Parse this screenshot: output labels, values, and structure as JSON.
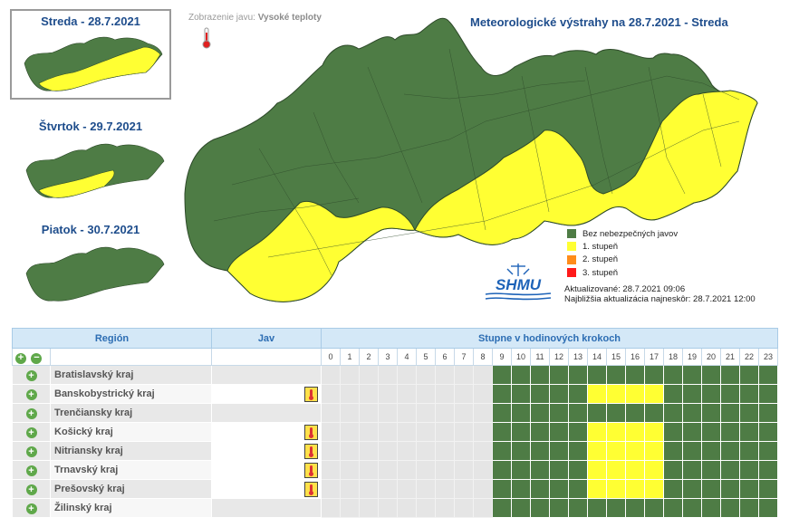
{
  "days": [
    {
      "label": "Streda - 28.7.2021",
      "selected": true
    },
    {
      "label": "Štvrtok - 29.7.2021",
      "selected": false
    },
    {
      "label": "Piatok - 30.7.2021",
      "selected": false
    }
  ],
  "phenomenon": {
    "label": "Zobrazenie javu:",
    "value": "Vysoké teploty",
    "icon": "thermometer-icon"
  },
  "map_title": "Meteorologické výstrahy na 28.7.2021 - Streda",
  "legend": [
    {
      "label": "Bez nebezpečných javov",
      "color": "#4e7c45"
    },
    {
      "label": "1. stupeň",
      "color": "#ffff33"
    },
    {
      "label": "2. stupeň",
      "color": "#ff8c1a"
    },
    {
      "label": "3. stupeň",
      "color": "#ff1a1a"
    }
  ],
  "logo_text": "SHMU",
  "updated": "Aktualizované: 28.7.2021 09:06",
  "next_update": "Najbližšia aktualizácia najneskôr: 28.7.2021 12:00",
  "table": {
    "col_region": "Región",
    "col_phen": "Jav",
    "col_steps": "Stupne v hodinových krokoch",
    "hours": [
      "0",
      "1",
      "2",
      "3",
      "4",
      "5",
      "6",
      "7",
      "8",
      "9",
      "10",
      "11",
      "12",
      "13",
      "14",
      "15",
      "16",
      "17",
      "18",
      "19",
      "20",
      "21",
      "22",
      "23"
    ],
    "rows": [
      {
        "name": "Bratislavský kraj",
        "warn": false,
        "levels": [
          null,
          null,
          null,
          null,
          null,
          null,
          null,
          null,
          null,
          0,
          0,
          0,
          0,
          0,
          0,
          0,
          0,
          0,
          0,
          0,
          0,
          0,
          0,
          0
        ]
      },
      {
        "name": "Banskobystrický kraj",
        "warn": true,
        "levels": [
          null,
          null,
          null,
          null,
          null,
          null,
          null,
          null,
          null,
          0,
          0,
          0,
          0,
          0,
          1,
          1,
          1,
          1,
          0,
          0,
          0,
          0,
          0,
          0
        ]
      },
      {
        "name": "Trenčiansky kraj",
        "warn": false,
        "levels": [
          null,
          null,
          null,
          null,
          null,
          null,
          null,
          null,
          null,
          0,
          0,
          0,
          0,
          0,
          0,
          0,
          0,
          0,
          0,
          0,
          0,
          0,
          0,
          0
        ]
      },
      {
        "name": "Košický kraj",
        "warn": true,
        "levels": [
          null,
          null,
          null,
          null,
          null,
          null,
          null,
          null,
          null,
          0,
          0,
          0,
          0,
          0,
          1,
          1,
          1,
          1,
          0,
          0,
          0,
          0,
          0,
          0
        ]
      },
      {
        "name": "Nitriansky kraj",
        "warn": true,
        "levels": [
          null,
          null,
          null,
          null,
          null,
          null,
          null,
          null,
          null,
          0,
          0,
          0,
          0,
          0,
          1,
          1,
          1,
          1,
          0,
          0,
          0,
          0,
          0,
          0
        ]
      },
      {
        "name": "Trnavský kraj",
        "warn": true,
        "levels": [
          null,
          null,
          null,
          null,
          null,
          null,
          null,
          null,
          null,
          0,
          0,
          0,
          0,
          0,
          1,
          1,
          1,
          1,
          0,
          0,
          0,
          0,
          0,
          0
        ]
      },
      {
        "name": "Prešovský kraj",
        "warn": true,
        "levels": [
          null,
          null,
          null,
          null,
          null,
          null,
          null,
          null,
          null,
          0,
          0,
          0,
          0,
          0,
          1,
          1,
          1,
          1,
          0,
          0,
          0,
          0,
          0,
          0
        ]
      },
      {
        "name": "Žilinský kraj",
        "warn": false,
        "levels": [
          null,
          null,
          null,
          null,
          null,
          null,
          null,
          null,
          null,
          0,
          0,
          0,
          0,
          0,
          0,
          0,
          0,
          0,
          0,
          0,
          0,
          0,
          0,
          0
        ]
      }
    ]
  }
}
